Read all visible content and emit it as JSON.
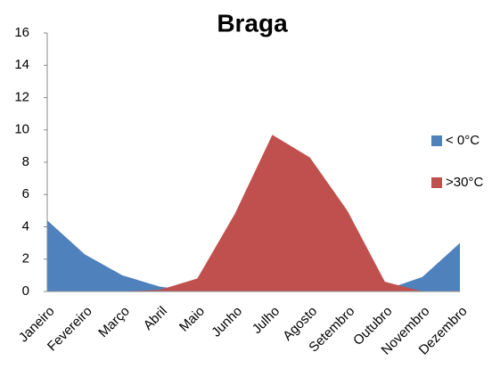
{
  "chart_data": {
    "type": "area",
    "title": "Braga",
    "categories": [
      "Janeiro",
      "Fevereiro",
      "Março",
      "Abril",
      "Maio",
      "Junho",
      "Julho",
      "Agosto",
      "Setembro",
      "Outubro",
      "Novembro",
      "Dezembro"
    ],
    "series": [
      {
        "name": "< 0°C",
        "color": "#4f81bd",
        "values": [
          4.4,
          2.3,
          1.0,
          0.3,
          0,
          0,
          0,
          0,
          0,
          0.1,
          0.9,
          3.0
        ]
      },
      {
        "name": ">30°C",
        "color": "#c0504d",
        "values": [
          0,
          0,
          0,
          0.1,
          0.8,
          4.8,
          9.7,
          8.3,
          5.0,
          0.6,
          0,
          0
        ]
      }
    ],
    "ylim": [
      0,
      16
    ],
    "yticks": [
      0,
      2,
      4,
      6,
      8,
      10,
      12,
      14,
      16
    ],
    "grid": false,
    "legend": "right"
  }
}
